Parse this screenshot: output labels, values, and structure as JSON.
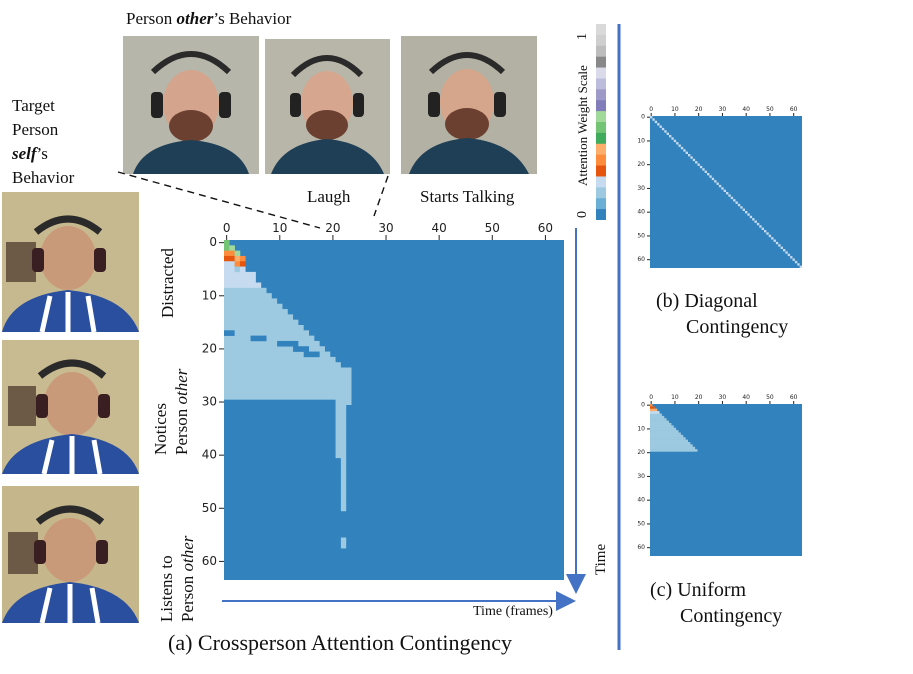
{
  "top": {
    "prefix": "Person ",
    "emph": "other",
    "suffix": "’s Behavior",
    "laugh": "Laugh",
    "starts_talking": "Starts Talking"
  },
  "left": {
    "line1": "Target",
    "line2": "Person",
    "emph": "self",
    "line3_suffix": "’s",
    "line4": "Behavior"
  },
  "ylabels": {
    "distracted": "Distracted",
    "notices_1": "Notices",
    "notices_2_prefix": "Person ",
    "notices_2_emph": "other",
    "listens_1": "Listens to",
    "listens_2_prefix": "Person ",
    "listens_2_emph": "other"
  },
  "colorbar": {
    "title": "Attention Weight Scale",
    "max_label": "1",
    "min_label": "0",
    "colors": [
      "#d9d9d9",
      "#cfcfcf",
      "#bdbdbd",
      "#888888",
      "#dadaeb",
      "#bcbddc",
      "#9e9ac8",
      "#807dba",
      "#a1d99b",
      "#74c476",
      "#41ab5d",
      "#fdae6b",
      "#fd8d3c",
      "#e6550d",
      "#c6dbef",
      "#9ecae1",
      "#6baed6",
      "#3182bd"
    ]
  },
  "time_label": "Time",
  "time_frames_label": "Time (frames)",
  "captions": {
    "a": "(a) Crossperson Attention Contingency",
    "b1": "(b) Diagonal",
    "b2": "Contingency",
    "c1": "(c) Uniform",
    "c2": "Contingency"
  },
  "chart_data": [
    {
      "type": "heatmap",
      "name": "crossperson",
      "size": 64,
      "xticks": [
        0,
        10,
        20,
        30,
        40,
        50,
        60
      ],
      "yticks": [
        0,
        10,
        20,
        30,
        40,
        50,
        60
      ],
      "background": "#3182bd",
      "high_weights": [
        {
          "r": 0,
          "c": 0,
          "color": "#74c476"
        },
        {
          "r": 1,
          "c": 0,
          "color": "#74c476"
        },
        {
          "r": 1,
          "c": 1,
          "color": "#a1d99b"
        },
        {
          "r": 2,
          "c": 0,
          "color": "#fd8d3c"
        },
        {
          "r": 2,
          "c": 1,
          "color": "#fd8d3c"
        },
        {
          "r": 2,
          "c": 2,
          "color": "#a1d99b"
        },
        {
          "r": 3,
          "c": 0,
          "color": "#e6550d"
        },
        {
          "r": 3,
          "c": 1,
          "color": "#e6550d"
        },
        {
          "r": 3,
          "c": 2,
          "color": "#fdae6b"
        },
        {
          "r": 3,
          "c": 3,
          "color": "#fd8d3c"
        },
        {
          "r": 4,
          "c": 0,
          "color": "#c6dbef"
        },
        {
          "r": 4,
          "c": 1,
          "color": "#c6dbef"
        },
        {
          "r": 4,
          "c": 2,
          "color": "#fd8d3c"
        },
        {
          "r": 4,
          "c": 3,
          "color": "#e6550d"
        },
        {
          "r": 5,
          "c": 0,
          "color": "#c6dbef"
        },
        {
          "r": 5,
          "c": 1,
          "color": "#c6dbef"
        },
        {
          "r": 5,
          "c": 2,
          "color": "#9ecae1"
        },
        {
          "r": 5,
          "c": 3,
          "color": "#c6dbef"
        }
      ],
      "light_region_extents": [
        [
          0,
          0
        ],
        [
          0,
          1
        ],
        [
          0,
          2
        ],
        [
          0,
          3
        ],
        [
          0,
          4
        ],
        [
          0,
          4
        ],
        [
          0,
          5
        ],
        [
          0,
          5
        ],
        [
          0,
          6
        ],
        [
          0,
          7
        ],
        [
          0,
          8
        ],
        [
          0,
          9
        ],
        [
          0,
          10
        ],
        [
          0,
          11
        ],
        [
          0,
          12
        ],
        [
          0,
          13
        ],
        [
          0,
          14
        ],
        [
          0,
          15
        ],
        [
          0,
          16
        ],
        [
          0,
          17
        ],
        [
          0,
          18
        ],
        [
          0,
          19
        ],
        [
          0,
          20
        ],
        [
          0,
          21
        ],
        [
          0,
          22
        ],
        [
          0,
          23
        ],
        [
          0,
          23
        ],
        [
          0,
          23
        ],
        [
          0,
          23
        ],
        [
          0,
          23
        ]
      ]
    },
    {
      "type": "heatmap",
      "name": "diagonal",
      "size": 64,
      "xticks": [
        0,
        10,
        20,
        30,
        40,
        50,
        60
      ],
      "yticks": [
        0,
        10,
        20,
        30,
        40,
        50,
        60
      ],
      "background": "#3182bd",
      "diagonal_color": "#c6dbef"
    },
    {
      "type": "heatmap",
      "name": "uniform",
      "size": 64,
      "xticks": [
        0,
        10,
        20,
        30,
        40,
        50,
        60
      ],
      "yticks": [
        0,
        10,
        20,
        30,
        40,
        50,
        60
      ],
      "background": "#3182bd",
      "triangle_rows": 20,
      "triangle_color": "#9ecae1",
      "top_colors": [
        "#fd8d3c",
        "#e6550d",
        "#fdae6b",
        "#c6dbef"
      ]
    }
  ]
}
